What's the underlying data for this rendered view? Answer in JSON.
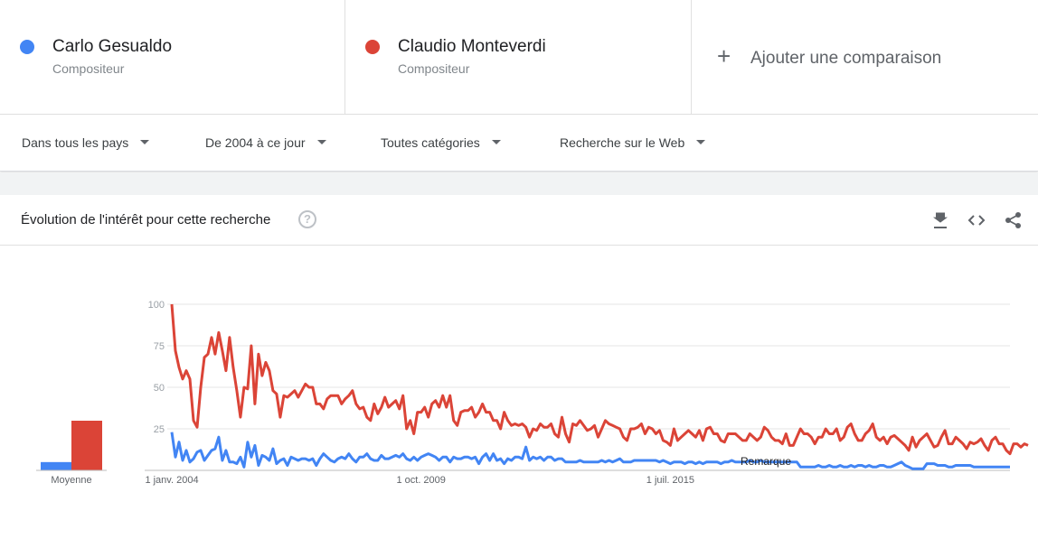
{
  "terms": [
    {
      "name": "Carlo Gesualdo",
      "subtitle": "Compositeur",
      "color": "#4285f4"
    },
    {
      "name": "Claudio Monteverdi",
      "subtitle": "Compositeur",
      "color": "#db4437"
    }
  ],
  "add_comparison": {
    "label": "Ajouter une comparaison",
    "icon": "plus-icon"
  },
  "filters": {
    "region": "Dans tous les pays",
    "period": "De 2004 à ce jour",
    "category": "Toutes catégories",
    "search_type": "Recherche sur le Web"
  },
  "panel": {
    "title": "Évolution de l'intérêt pour cette recherche",
    "help_icon": "help-circle-icon",
    "tools": [
      "download-icon",
      "embed-code-icon",
      "share-icon"
    ]
  },
  "chart_data": {
    "type": "line",
    "yticks": [
      100,
      75,
      50,
      25
    ],
    "ylim": [
      0,
      100
    ],
    "xlabels": [
      {
        "label": "1 janv. 2004",
        "index": 0
      },
      {
        "label": "1 oct. 2009",
        "index": 69
      },
      {
        "label": "1 juil. 2015",
        "index": 138
      }
    ],
    "note_label": "Remarque",
    "averages": {
      "label": "Moyenne",
      "values": [
        5,
        30
      ]
    },
    "series": [
      {
        "name": "Carlo Gesualdo",
        "color": "#4285f4",
        "values": [
          23,
          8,
          17,
          6,
          12,
          5,
          7,
          11,
          12,
          6,
          9,
          12,
          13,
          20,
          6,
          12,
          5,
          5,
          4,
          8,
          2,
          17,
          8,
          15,
          3,
          9,
          8,
          6,
          13,
          4,
          6,
          7,
          3,
          8,
          7,
          6,
          7,
          7,
          6,
          7,
          3,
          7,
          10,
          8,
          6,
          5,
          7,
          8,
          7,
          10,
          7,
          5,
          8,
          8,
          10,
          7,
          6,
          6,
          9,
          7,
          7,
          8,
          9,
          8,
          10,
          7,
          6,
          8,
          6,
          8,
          9,
          10,
          9,
          8,
          6,
          8,
          8,
          5,
          8,
          7,
          7,
          8,
          8,
          7,
          8,
          4,
          8,
          10,
          6,
          10,
          6,
          7,
          4,
          7,
          6,
          8,
          8,
          7,
          14,
          6,
          8,
          7,
          8,
          6,
          8,
          8,
          6,
          7,
          7,
          5,
          5,
          5,
          5,
          6,
          5,
          5,
          5,
          5,
          5,
          6,
          5,
          6,
          5,
          6,
          7,
          5,
          5,
          5,
          6,
          6,
          6,
          6,
          6,
          6,
          6,
          5,
          6,
          5,
          4,
          5,
          5,
          5,
          4,
          5,
          5,
          4,
          5,
          4,
          5,
          5,
          5,
          5,
          4,
          5,
          5,
          6,
          5,
          5,
          5,
          5,
          6,
          5,
          5,
          6,
          5,
          5,
          5,
          5,
          5,
          5,
          5,
          5,
          5,
          5,
          2,
          2,
          2,
          2,
          2,
          3,
          2,
          2,
          3,
          2,
          2,
          3,
          2,
          2,
          3,
          2,
          3,
          3,
          2,
          3,
          2,
          2,
          3,
          3,
          2,
          2,
          3,
          4,
          5,
          3,
          2,
          1,
          1,
          1,
          1,
          4,
          4,
          4,
          3,
          3,
          3,
          2,
          2,
          3,
          3,
          3,
          3,
          3,
          2,
          2,
          2,
          2,
          2,
          2,
          2,
          2,
          2,
          2,
          2
        ]
      },
      {
        "name": "Claudio Monteverdi",
        "color": "#db4437",
        "values": [
          100,
          72,
          62,
          55,
          60,
          55,
          30,
          26,
          50,
          68,
          70,
          80,
          70,
          83,
          72,
          60,
          80,
          62,
          48,
          32,
          50,
          49,
          75,
          40,
          70,
          57,
          65,
          60,
          48,
          46,
          32,
          45,
          44,
          46,
          48,
          44,
          48,
          52,
          50,
          50,
          40,
          40,
          37,
          43,
          45,
          45,
          45,
          40,
          43,
          45,
          48,
          40,
          37,
          38,
          32,
          30,
          40,
          34,
          38,
          44,
          38,
          40,
          42,
          37,
          45,
          25,
          30,
          22,
          35,
          35,
          38,
          32,
          40,
          42,
          38,
          45,
          38,
          45,
          30,
          27,
          35,
          36,
          36,
          38,
          32,
          35,
          40,
          35,
          35,
          30,
          30,
          25,
          35,
          30,
          27,
          28,
          27,
          28,
          26,
          20,
          25,
          24,
          28,
          26,
          26,
          28,
          22,
          20,
          32,
          22,
          17,
          28,
          27,
          30,
          27,
          24,
          25,
          27,
          20,
          25,
          30,
          28,
          27,
          26,
          25,
          20,
          18,
          25,
          25,
          26,
          28,
          22,
          26,
          25,
          22,
          24,
          18,
          17,
          15,
          25,
          18,
          20,
          22,
          24,
          22,
          20,
          24,
          18,
          25,
          26,
          22,
          22,
          18,
          17,
          22,
          22,
          22,
          20,
          18,
          18,
          22,
          20,
          18,
          20,
          26,
          24,
          20,
          18,
          18,
          16,
          22,
          15,
          15,
          20,
          25,
          22,
          22,
          20,
          16,
          20,
          20,
          25,
          22,
          22,
          25,
          18,
          20,
          26,
          28,
          22,
          18,
          18,
          22,
          24,
          28,
          20,
          18,
          20,
          16,
          20,
          21,
          19,
          17,
          15,
          12,
          20,
          14,
          18,
          20,
          22,
          18,
          14,
          15,
          20,
          24,
          16,
          16,
          20,
          18,
          16,
          13,
          17,
          16,
          17,
          19,
          15,
          12,
          18,
          20,
          16,
          16,
          12,
          10,
          16,
          16,
          14,
          16,
          15
        ]
      }
    ]
  }
}
